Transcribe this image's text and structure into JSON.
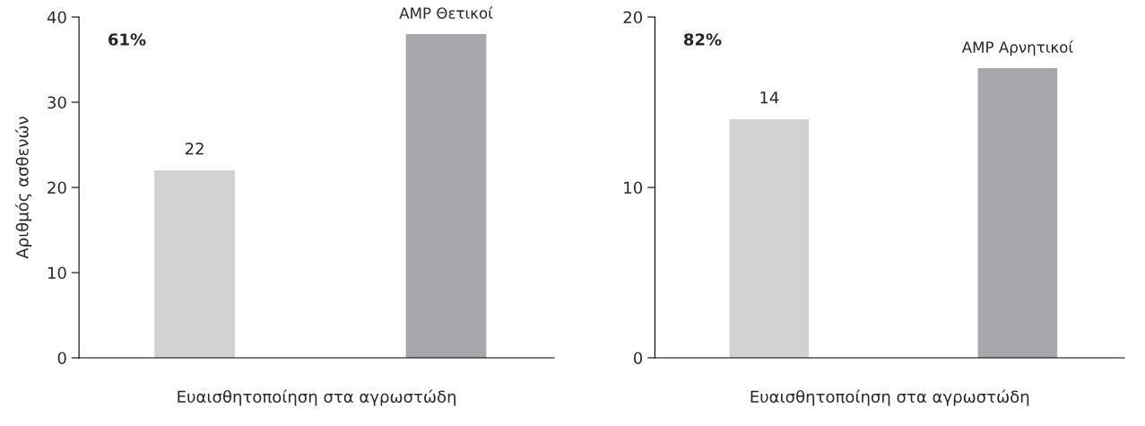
{
  "chart_data": [
    {
      "type": "bar",
      "ylabel": "Αριθμός ασθενών",
      "xlabel": "Ευαισθητοποίηση στα αγρωστώδη",
      "categories": [
        null,
        null
      ],
      "series": [
        {
          "color": "#d1d2d4",
          "values": [
            22,
            null
          ],
          "value_labels": [
            "22",
            null
          ]
        },
        {
          "name": "AMP Θετικοί",
          "color": "#a7a8ab",
          "values": [
            null,
            38
          ]
        }
      ],
      "ylim": [
        0,
        40
      ],
      "yticks": [
        0,
        10,
        20,
        30,
        40
      ],
      "annotations": [
        "61%"
      ],
      "grid": false,
      "legend": false
    },
    {
      "type": "bar",
      "xlabel": "Ευαισθητοποίηση στα αγρωστώδη",
      "categories": [
        null,
        null
      ],
      "series": [
        {
          "color": "#d1d2d4",
          "values": [
            14,
            null
          ],
          "value_labels": [
            "14",
            null
          ]
        },
        {
          "name": "AMP Αρνητικοί",
          "color": "#a7a8ab",
          "values": [
            null,
            17
          ]
        }
      ],
      "ylim": [
        0,
        20
      ],
      "yticks": [
        0,
        10,
        20
      ],
      "annotations": [
        "82%"
      ],
      "grid": false,
      "legend": false
    }
  ]
}
